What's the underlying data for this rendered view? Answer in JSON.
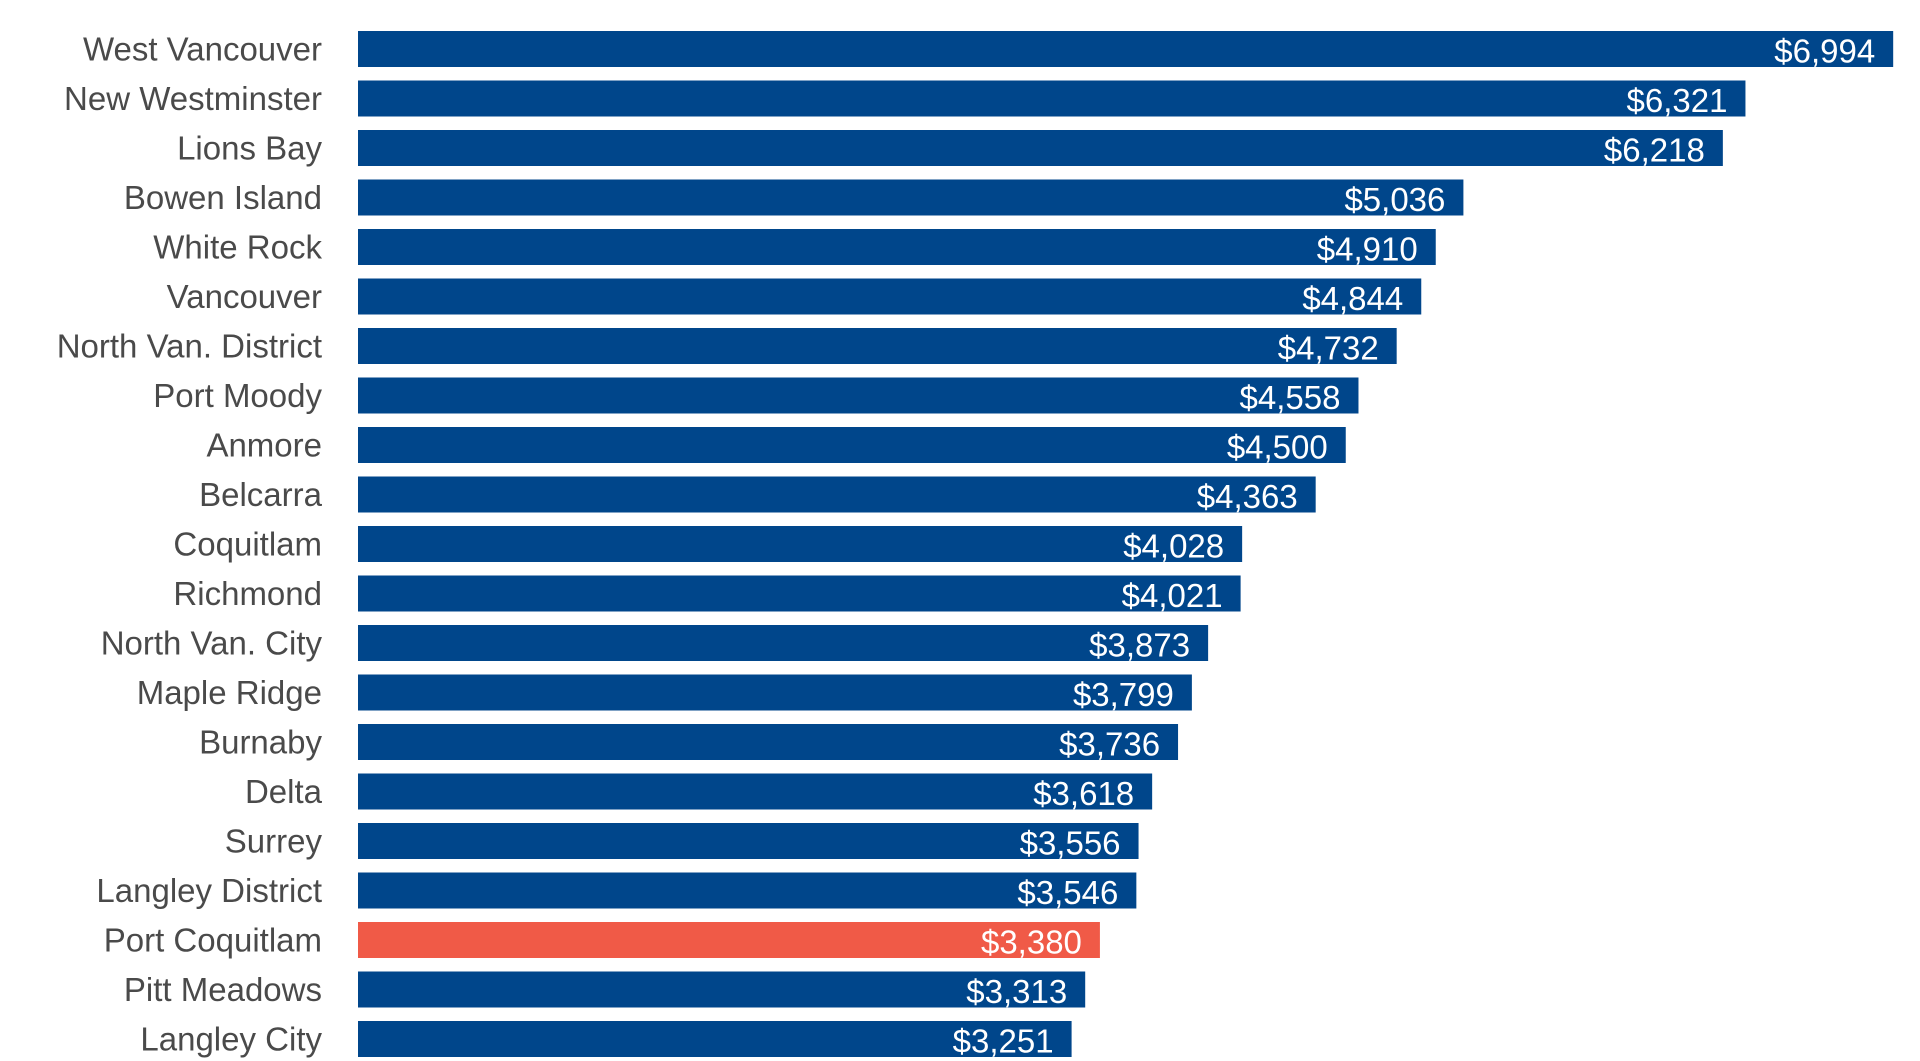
{
  "chart_data": {
    "type": "bar",
    "orientation": "horizontal",
    "title": "",
    "xlabel": "",
    "ylabel": "",
    "grid": false,
    "legend": "none",
    "xlim": [
      0,
      7000
    ],
    "value_prefix": "$",
    "bar_color": "#00468B",
    "highlight_color": "#F05A47",
    "highlight_category": "Port Coquitlam",
    "categories": [
      "West Vancouver",
      "New Westminster",
      "Lions Bay",
      "Bowen Island",
      "White Rock",
      "Vancouver",
      "North Van. District",
      "Port Moody",
      "Anmore",
      "Belcarra",
      "Coquitlam",
      "Richmond",
      "North Van. City",
      "Maple Ridge",
      "Burnaby",
      "Delta",
      "Surrey",
      "Langley District",
      "Port Coquitlam",
      "Pitt Meadows",
      "Langley City"
    ],
    "values": [
      6994,
      6321,
      6218,
      5036,
      4910,
      4844,
      4732,
      4558,
      4500,
      4363,
      4028,
      4021,
      3873,
      3799,
      3736,
      3618,
      3556,
      3546,
      3380,
      3313,
      3251
    ],
    "value_labels": [
      "$6,994",
      "$6,321",
      "$6,218",
      "$5,036",
      "$4,910",
      "$4,844",
      "$4,732",
      "$4,558",
      "$4,500",
      "$4,363",
      "$4,028",
      "$4,021",
      "$3,873",
      "$3,799",
      "$3,736",
      "$3,618",
      "$3,556",
      "$3,546",
      "$3,380",
      "$3,313",
      "$3,251"
    ]
  }
}
